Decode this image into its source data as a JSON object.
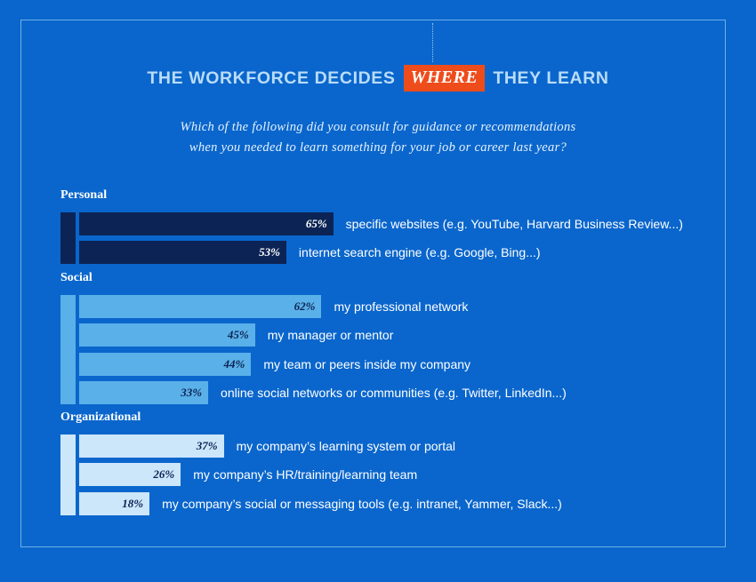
{
  "title": {
    "before": "THE WORKFORCE DECIDES",
    "highlight": "WHERE",
    "after": "THEY LEARN"
  },
  "subtitle": {
    "line1": "Which of the following did you consult for guidance or recommendations",
    "line2": "when you needed to learn something for your job or career last year?"
  },
  "colors": {
    "background": "#0a66cc",
    "highlight": "#ee4c1b",
    "personal": "#0c2455",
    "social": "#5ab0e8",
    "organizational": "#cce6fa"
  },
  "chart_data": {
    "type": "bar",
    "orientation": "horizontal",
    "xlim": [
      0,
      100
    ],
    "value_suffix": "%",
    "groups": [
      {
        "name": "Personal",
        "color": "#0c2455",
        "label_color": "#ffffff",
        "items": [
          {
            "label": "specific websites (e.g. YouTube, Harvard Business Review...)",
            "value": 65
          },
          {
            "label": "internet search engine (e.g. Google, Bing...)",
            "value": 53
          }
        ]
      },
      {
        "name": "Social",
        "color": "#5ab0e8",
        "label_color": "#0c2455",
        "items": [
          {
            "label": "my professional network",
            "value": 62
          },
          {
            "label": "my manager or mentor",
            "value": 45
          },
          {
            "label": "my team or peers inside my company",
            "value": 44
          },
          {
            "label": "online social networks or communities (e.g. Twitter, LinkedIn...)",
            "value": 33
          }
        ]
      },
      {
        "name": "Organizational",
        "color": "#cce6fa",
        "label_color": "#0c2455",
        "items": [
          {
            "label": "my company’s learning system or portal",
            "value": 37
          },
          {
            "label": "my company’s HR/training/learning team",
            "value": 26
          },
          {
            "label": "my company’s social or messaging tools (e.g. intranet, Yammer, Slack...)",
            "value": 18
          }
        ]
      }
    ]
  }
}
